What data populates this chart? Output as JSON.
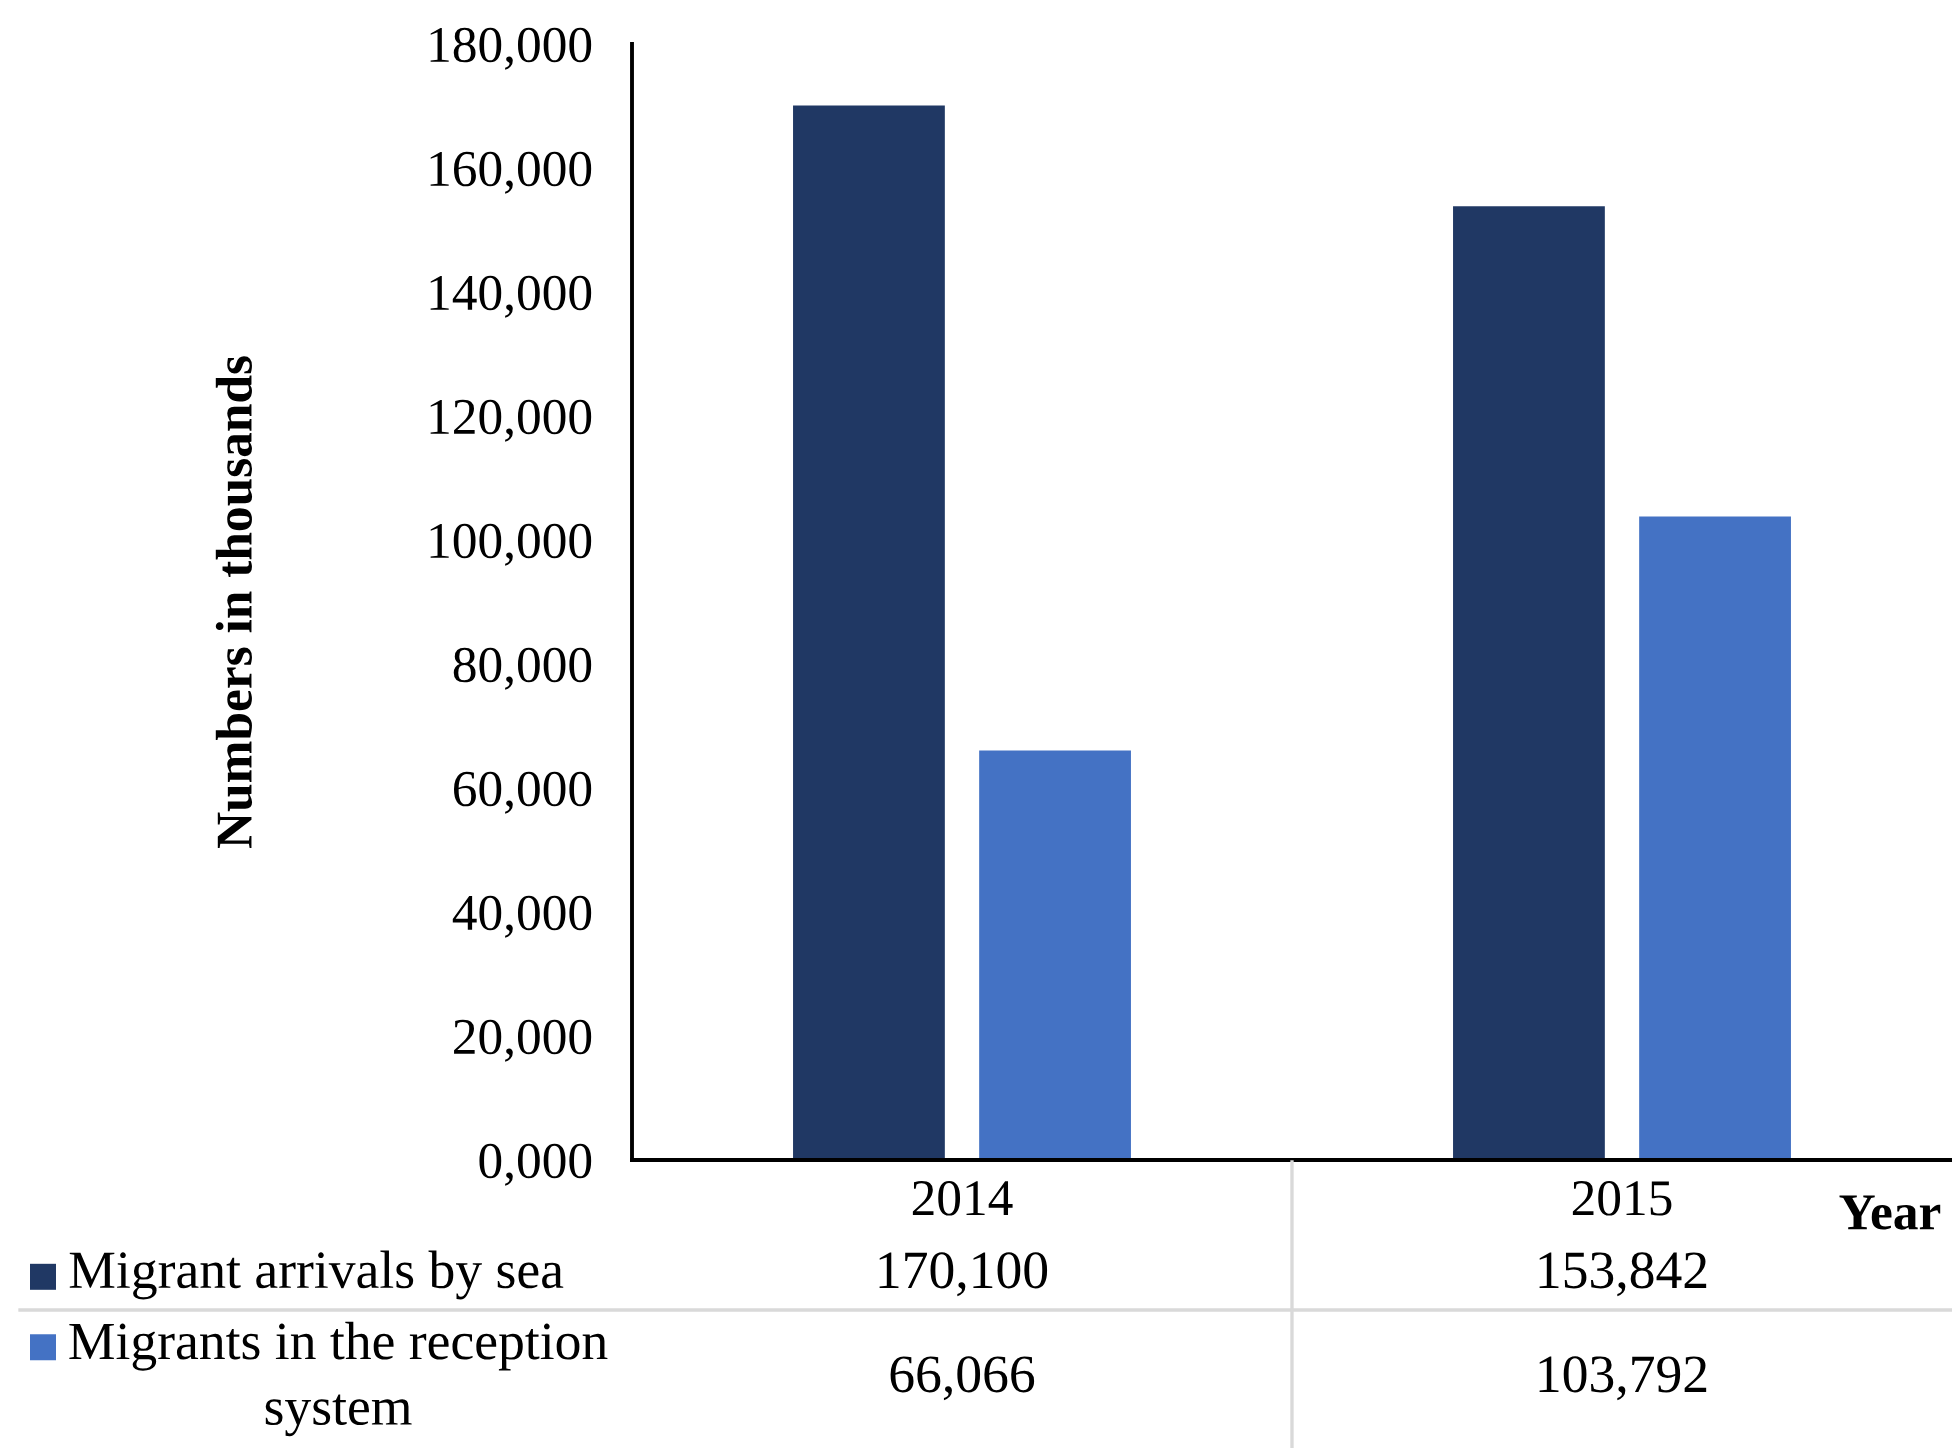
{
  "chart_data": {
    "type": "bar",
    "xlabel": "Year",
    "ylabel": "Numbers in thousands",
    "categories": [
      "2014",
      "2015"
    ],
    "series": [
      {
        "name": "Migrant arrivals by sea",
        "color": "#203864",
        "values": [
          170100,
          153842
        ],
        "value_labels": [
          "170,100",
          "153,842"
        ]
      },
      {
        "name": "Migrants in the reception system",
        "color": "#4472c4",
        "values": [
          66066,
          103792
        ],
        "value_labels": [
          "66,066",
          "103,792"
        ]
      }
    ],
    "ylim": [
      0,
      180000
    ],
    "yticks": [
      {
        "value": 0,
        "label": "0,000"
      },
      {
        "value": 20000,
        "label": "20,000"
      },
      {
        "value": 40000,
        "label": "40,000"
      },
      {
        "value": 60000,
        "label": "60,000"
      },
      {
        "value": 80000,
        "label": "80,000"
      },
      {
        "value": 100000,
        "label": "100,000"
      },
      {
        "value": 120000,
        "label": "120,000"
      },
      {
        "value": 140000,
        "label": "140,000"
      },
      {
        "value": 160000,
        "label": "160,000"
      },
      {
        "value": 180000,
        "label": "180,000"
      }
    ],
    "grid": false,
    "legend": "bottom"
  }
}
